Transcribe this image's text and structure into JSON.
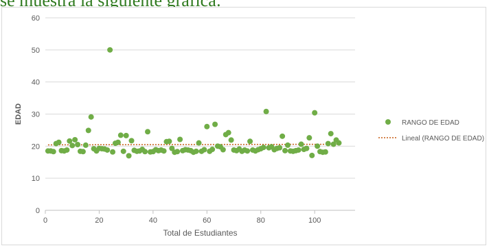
{
  "heading_text": "se muestra la siguiente grafica:",
  "colors": {
    "marker": "#70ad47",
    "trendline": "#c55a11",
    "grid": "#d9d9d9",
    "heading": "#2f7a1f"
  },
  "chart_data": {
    "type": "scatter",
    "title": "",
    "xlabel": "Total de Estudiantes",
    "ylabel": "EDAD",
    "xlim": [
      0,
      115
    ],
    "ylim": [
      0,
      60
    ],
    "x_ticks": [
      0,
      20,
      40,
      60,
      80,
      100
    ],
    "y_ticks": [
      0,
      10,
      20,
      30,
      40,
      50,
      60
    ],
    "grid": "horizontal",
    "legend_position": "right",
    "series": [
      {
        "name": "RANGO DE EDAD",
        "x": [
          1,
          2,
          3,
          4,
          5,
          6,
          7,
          8,
          9,
          10,
          11,
          12,
          13,
          14,
          15,
          16,
          17,
          18,
          19,
          20,
          21,
          22,
          23,
          24,
          25,
          26,
          27,
          28,
          29,
          30,
          31,
          32,
          33,
          34,
          35,
          36,
          37,
          38,
          39,
          40,
          41,
          42,
          43,
          44,
          45,
          46,
          47,
          48,
          49,
          50,
          51,
          52,
          53,
          54,
          55,
          56,
          57,
          58,
          59,
          60,
          61,
          62,
          63,
          64,
          65,
          66,
          67,
          68,
          69,
          70,
          71,
          72,
          73,
          74,
          75,
          76,
          77,
          78,
          79,
          80,
          81,
          82,
          83,
          84,
          85,
          86,
          87,
          88,
          89,
          90,
          91,
          92,
          93,
          94,
          95,
          96,
          97,
          98,
          99,
          100,
          101,
          102,
          103,
          104,
          105,
          106,
          107,
          108,
          109
        ],
        "y": [
          18.5,
          18.5,
          18.3,
          20.8,
          21.2,
          18.6,
          18.5,
          18.8,
          21.6,
          20.2,
          22.0,
          20.5,
          18.4,
          18.3,
          20.3,
          24.9,
          29.1,
          19.2,
          18.5,
          19.3,
          19.2,
          19.1,
          18.8,
          50.0,
          18.2,
          20.9,
          21.2,
          23.4,
          18.4,
          23.3,
          17.0,
          21.7,
          18.7,
          18.4,
          18.5,
          19.0,
          18.3,
          24.5,
          18.2,
          18.3,
          18.9,
          18.6,
          18.8,
          18.5,
          21.4,
          21.5,
          19.3,
          18.1,
          18.3,
          22.1,
          18.6,
          18.9,
          18.8,
          18.6,
          18.1,
          18.4,
          21.0,
          18.4,
          18.9,
          26.1,
          18.4,
          19.0,
          26.8,
          20.0,
          19.8,
          18.9,
          23.6,
          24.2,
          21.9,
          18.8,
          18.6,
          19.1,
          18.4,
          18.8,
          18.5,
          21.5,
          18.8,
          18.5,
          18.9,
          19.2,
          19.6,
          30.8,
          19.5,
          19.8,
          18.9,
          19.3,
          19.5,
          23.1,
          18.6,
          20.3,
          18.5,
          18.4,
          18.6,
          18.8,
          20.6,
          19.0,
          19.3,
          22.6,
          17.1,
          30.4,
          20.0,
          18.3,
          18.1,
          18.2,
          20.8,
          23.9,
          20.6,
          21.9,
          21.0
        ]
      },
      {
        "name": "Lineal (RANGO DE EDAD)",
        "type": "trendline",
        "x": [
          1,
          109
        ],
        "y": [
          20.4,
          20.6
        ]
      }
    ]
  }
}
